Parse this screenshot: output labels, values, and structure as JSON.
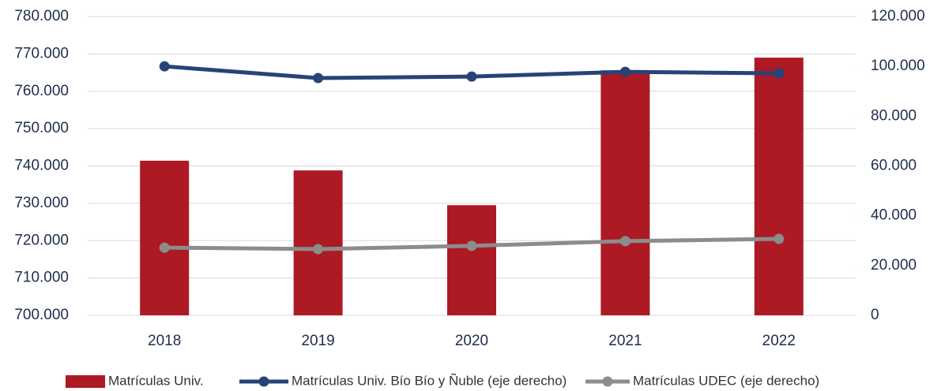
{
  "chart_data": {
    "type": "bar",
    "categories": [
      "2018",
      "2019",
      "2020",
      "2021",
      "2022"
    ],
    "series": [
      {
        "name": "Matrículas Univ.",
        "type": "bar",
        "color": "#ad1a24",
        "values": [
          741400,
          738800,
          729500,
          765600,
          769000
        ]
      },
      {
        "name": "Matrículas Univ. Bío Bío y Ñuble (eje derecho)",
        "type": "line",
        "axis": "y2",
        "color": "#264478",
        "values": [
          100000,
          95300,
          95900,
          97800,
          97200
        ]
      },
      {
        "name": "Matrículas UDEC (eje derecho)",
        "type": "line",
        "axis": "y2",
        "color": "#8c8c8c",
        "values": [
          27200,
          26600,
          27900,
          29800,
          30700
        ]
      }
    ],
    "ylim": [
      700000,
      780000
    ],
    "yticks": [
      {
        "value": 700000,
        "label": "700.000"
      },
      {
        "value": 710000,
        "label": "710.000"
      },
      {
        "value": 720000,
        "label": "720.000"
      },
      {
        "value": 730000,
        "label": "730.000"
      },
      {
        "value": 740000,
        "label": "740.000"
      },
      {
        "value": 750000,
        "label": "750.000"
      },
      {
        "value": 760000,
        "label": "760.000"
      },
      {
        "value": 770000,
        "label": "770.000"
      },
      {
        "value": 780000,
        "label": "780.000"
      }
    ],
    "y2lim": [
      0,
      120000
    ],
    "y2ticks": [
      0,
      {
        "value": 20000,
        "label": "20.000"
      },
      {
        "value": 40000,
        "label": "40.000"
      },
      {
        "value": 60000,
        "label": "60.000"
      },
      {
        "value": 80000,
        "label": "80.000"
      },
      {
        "value": 100000,
        "label": "100.000"
      },
      {
        "value": 120000,
        "label": "120.000"
      }
    ],
    "grid": true,
    "legend": "bottom"
  }
}
